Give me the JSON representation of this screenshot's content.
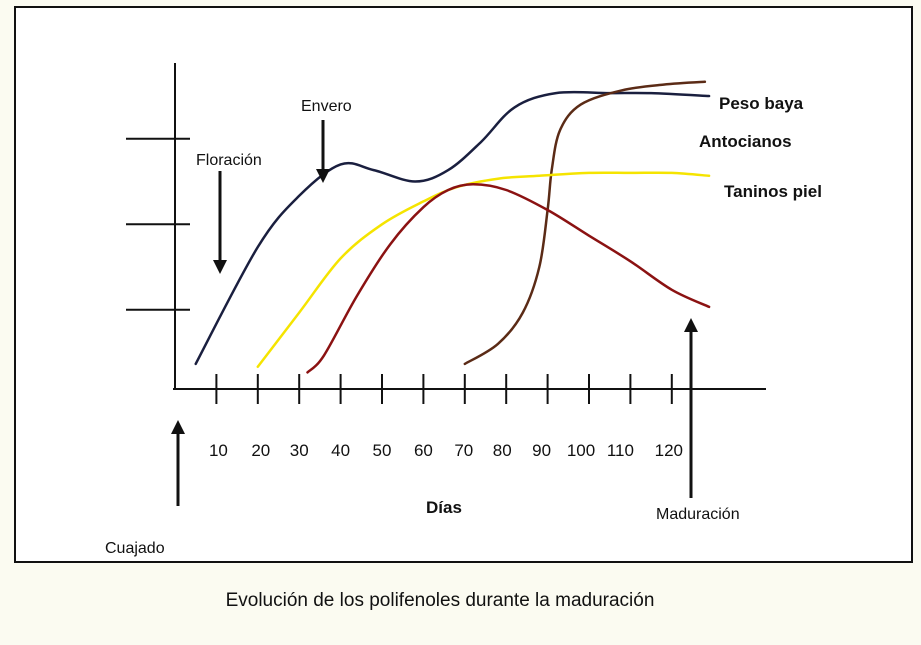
{
  "chart_data": {
    "type": "line",
    "title": "Evolución de los polifenoles durante la maduración",
    "xlabel": "Días",
    "ylabel": "",
    "x_ticks": [
      10,
      20,
      30,
      40,
      50,
      60,
      70,
      80,
      90,
      100,
      110,
      120
    ],
    "xlim": [
      0,
      145
    ],
    "ylim": [
      0,
      100
    ],
    "grid": false,
    "series": [
      {
        "name": "Peso baya",
        "color": "#1a1f3f",
        "x": [
          5,
          20,
          30,
          40,
          48,
          58,
          66,
          74,
          82,
          92,
          105,
          115,
          129
        ],
        "y": [
          6,
          47,
          65,
          76,
          74,
          70,
          74,
          84,
          96,
          101,
          101,
          101,
          100
        ]
      },
      {
        "name": "Antocianos",
        "color": "#5b2b16",
        "x": [
          70,
          78,
          84,
          88,
          90,
          91,
          93,
          98,
          108,
          118,
          128
        ],
        "y": [
          6,
          13,
          24,
          40,
          60,
          74,
          88,
          97,
          102,
          104,
          105
        ]
      },
      {
        "name": "Taninos piel",
        "color": "#f5e400",
        "x": [
          20,
          30,
          40,
          50,
          60,
          68,
          78,
          88,
          100,
          110,
          120,
          129
        ],
        "y": [
          5,
          24,
          43,
          55,
          63,
          68,
          71,
          72,
          73,
          73,
          73,
          72
        ]
      },
      {
        "name": "",
        "color": "#8b1212",
        "x": [
          32,
          36,
          44,
          52,
          60,
          66,
          72,
          80,
          90,
          100,
          110,
          120,
          129
        ],
        "y": [
          3,
          9,
          30,
          48,
          61,
          67,
          69,
          67,
          60,
          51,
          42,
          32,
          26
        ]
      }
    ],
    "annotations": [
      {
        "label": "Floración",
        "x": 17,
        "direction": "down"
      },
      {
        "label": "Envero",
        "x": 40,
        "direction": "down"
      },
      {
        "label": "Cuajado",
        "x": 5,
        "direction": "up"
      },
      {
        "label": "Maduración",
        "x": 127,
        "direction": "up"
      }
    ]
  }
}
